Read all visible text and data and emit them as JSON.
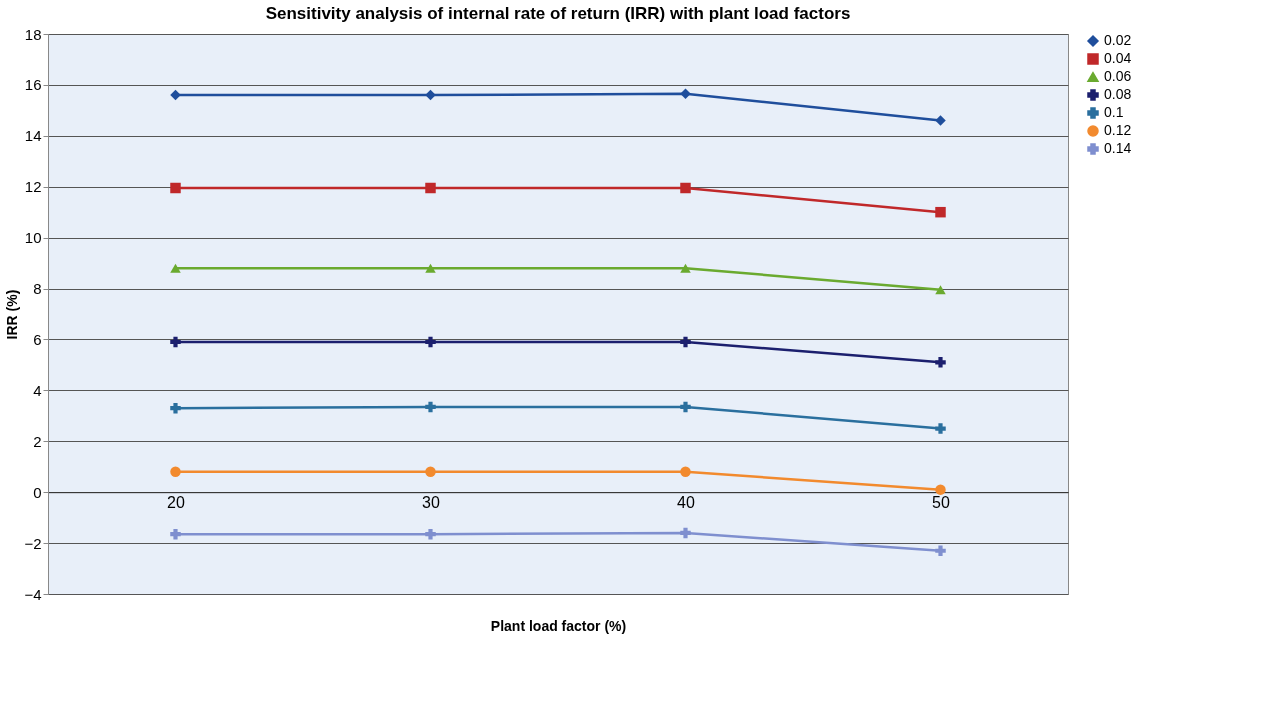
{
  "chart_data": {
    "type": "line",
    "title": "Sensitivity analysis of internal rate of return (IRR) with plant load factors",
    "xlabel": "Plant load factor (%)",
    "ylabel": "IRR (%)",
    "categories": [
      "20",
      "30",
      "40",
      "50"
    ],
    "series": [
      {
        "name": "0.02",
        "color": "#1f4e9c",
        "marker": "diamond",
        "values": [
          15.6,
          15.6,
          15.65,
          14.6
        ]
      },
      {
        "name": "0.04",
        "color": "#c0282a",
        "marker": "square",
        "values": [
          11.95,
          11.95,
          11.95,
          11.0
        ]
      },
      {
        "name": "0.06",
        "color": "#6aaa2f",
        "marker": "triangle",
        "values": [
          8.8,
          8.8,
          8.8,
          7.95
        ]
      },
      {
        "name": "0.08",
        "color": "#1b1f6e",
        "marker": "cross",
        "values": [
          5.9,
          5.9,
          5.9,
          5.1
        ]
      },
      {
        "name": "0.1",
        "color": "#2a6f9e",
        "marker": "cross",
        "values": [
          3.3,
          3.35,
          3.35,
          2.5
        ]
      },
      {
        "name": "0.12",
        "color": "#f28a2e",
        "marker": "circle",
        "values": [
          0.8,
          0.8,
          0.8,
          0.1
        ]
      },
      {
        "name": "0.14",
        "color": "#7f8fcf",
        "marker": "cross",
        "values": [
          -1.65,
          -1.65,
          -1.6,
          -2.3
        ]
      }
    ],
    "ylim": [
      -4,
      18
    ],
    "yticks": [
      -4,
      -2,
      0,
      2,
      4,
      6,
      8,
      10,
      12,
      14,
      16,
      18
    ],
    "grid": "y",
    "legend": "right",
    "line_style": "solid"
  }
}
